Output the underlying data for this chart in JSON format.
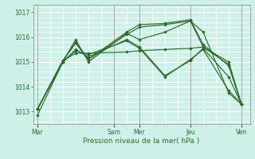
{
  "bg_color": "#cff0e8",
  "grid_color": "#ffffff",
  "line_color": "#2d6a2d",
  "tick_color": "#2d6a2d",
  "label_color": "#2d6a2d",
  "xlabel": "Pression niveau de la mer( hPa )",
  "ylim": [
    1012.5,
    1017.3
  ],
  "yticks": [
    1013,
    1014,
    1015,
    1016,
    1017
  ],
  "xtick_labels": [
    "Mar",
    "Sam",
    "Mer",
    "Jeu",
    "Ven"
  ],
  "xtick_positions": [
    0,
    36,
    48,
    72,
    96
  ],
  "xlim": [
    -2,
    100
  ],
  "series": [
    {
      "x": [
        0,
        12,
        18,
        24,
        42,
        48,
        60,
        72,
        78,
        90,
        96
      ],
      "y": [
        1012.85,
        1015.0,
        1015.9,
        1015.0,
        1016.15,
        1015.9,
        1016.2,
        1016.65,
        1016.2,
        1013.75,
        1013.3
      ]
    },
    {
      "x": [
        0,
        12,
        18,
        24,
        42,
        48,
        60,
        72,
        78,
        90,
        96
      ],
      "y": [
        1013.1,
        1015.05,
        1015.8,
        1015.1,
        1016.2,
        1016.5,
        1016.55,
        1016.7,
        1015.7,
        1014.85,
        1013.3
      ]
    },
    {
      "x": [
        0,
        12,
        18,
        24,
        42,
        48,
        60,
        72,
        78,
        90,
        96
      ],
      "y": [
        1013.1,
        1015.05,
        1015.75,
        1015.1,
        1016.1,
        1016.4,
        1016.5,
        1016.65,
        1015.6,
        1014.9,
        1013.3
      ]
    },
    {
      "x": [
        0,
        12,
        18,
        24,
        42,
        48,
        60,
        72,
        78,
        90,
        96
      ],
      "y": [
        1013.1,
        1015.0,
        1015.5,
        1015.2,
        1015.9,
        1015.6,
        1014.45,
        1015.05,
        1015.55,
        1014.4,
        1013.3
      ]
    },
    {
      "x": [
        0,
        12,
        18,
        24,
        42,
        48,
        60,
        72,
        78,
        90,
        96
      ],
      "y": [
        1013.1,
        1015.0,
        1015.45,
        1015.3,
        1015.85,
        1015.55,
        1014.4,
        1015.1,
        1015.5,
        1013.85,
        1013.3
      ]
    },
    {
      "x": [
        0,
        12,
        18,
        24,
        42,
        48,
        60,
        72,
        78,
        90,
        96
      ],
      "y": [
        1013.1,
        1015.05,
        1015.35,
        1015.35,
        1015.4,
        1015.45,
        1015.5,
        1015.55,
        1015.6,
        1015.0,
        1013.3
      ]
    }
  ],
  "vlines": [
    0,
    36,
    48,
    72,
    96
  ]
}
